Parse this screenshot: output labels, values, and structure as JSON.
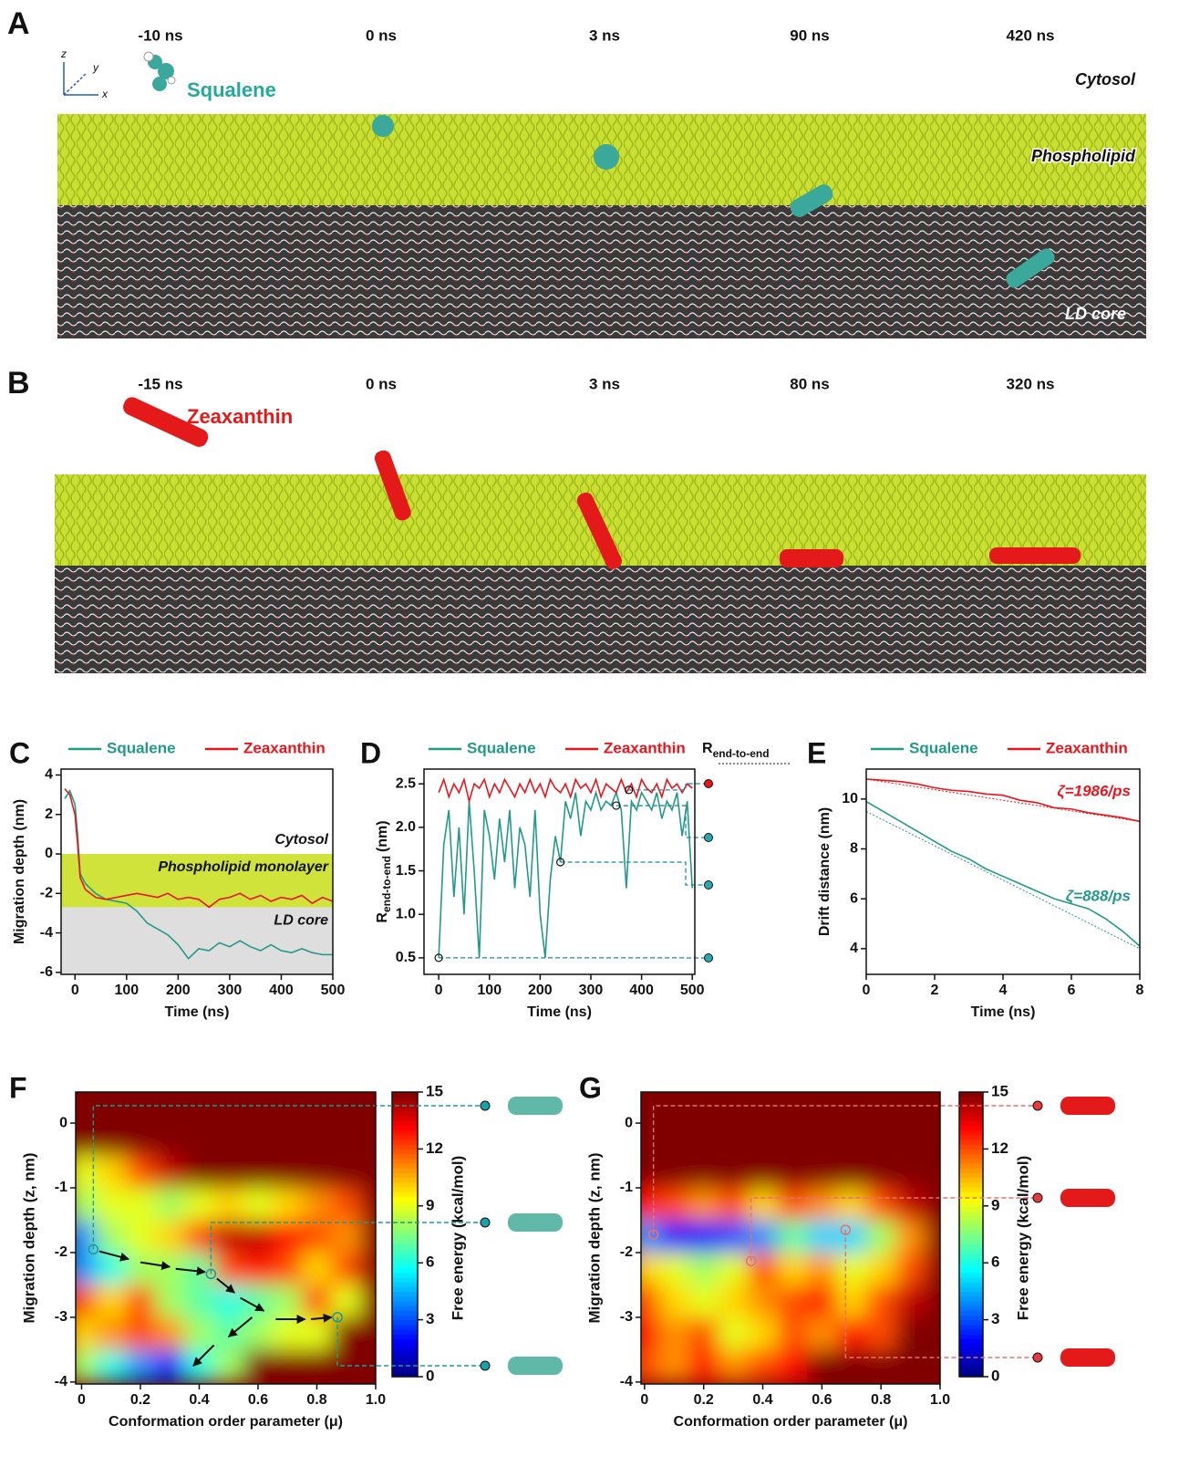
{
  "panel_a": {
    "letter": "A",
    "times": [
      "-10 ns",
      "0 ns",
      "3 ns",
      "90 ns",
      "420 ns"
    ],
    "molecule": "Squalene",
    "cytosol": "Cytosol",
    "phospholipid": "Phospholipid",
    "core": "LD core",
    "axes": [
      "z",
      "y",
      "x"
    ]
  },
  "panel_b": {
    "letter": "B",
    "times": [
      "-15 ns",
      "0 ns",
      "3 ns",
      "80 ns",
      "320 ns"
    ],
    "molecule": "Zeaxanthin"
  },
  "chart_data": [
    {
      "type": "line",
      "panel": "C",
      "x_label": "Time (ns)",
      "y_label": "Migration depth (nm)",
      "xlim": [
        -27,
        500
      ],
      "xticks": [
        0,
        100,
        200,
        300,
        400,
        500
      ],
      "ylim": [
        -6.1,
        4.3
      ],
      "yticks": [
        -6,
        -4,
        -2,
        0,
        2,
        4
      ],
      "cytosol_label": "Cytosol",
      "bands": [
        {
          "label": "Phospholipid monolayer",
          "from": 0,
          "to": -2.7,
          "color": "#cfe33a"
        },
        {
          "label": "LD core",
          "from": -2.7,
          "to": -6.1,
          "color": "#dedede"
        }
      ],
      "x": [
        -20,
        -10,
        0,
        5,
        10,
        20,
        40,
        60,
        80,
        100,
        120,
        140,
        160,
        180,
        200,
        220,
        240,
        260,
        280,
        300,
        320,
        340,
        360,
        380,
        400,
        420,
        440,
        460,
        480,
        500
      ],
      "series": [
        {
          "name": "Squalene",
          "color": "#22998a",
          "values": [
            2.8,
            3.2,
            2.5,
            1,
            -1,
            -1.5,
            -2.0,
            -2.3,
            -2.4,
            -2.5,
            -2.9,
            -3.5,
            -3.8,
            -4.1,
            -4.6,
            -5.3,
            -4.8,
            -4.9,
            -4.5,
            -4.7,
            -4.4,
            -4.7,
            -4.9,
            -4.6,
            -4.9,
            -5.0,
            -4.8,
            -5.0,
            -5.1,
            -5.1
          ]
        },
        {
          "name": "Zeaxanthin",
          "color": "#e8161c",
          "values": [
            3.3,
            3.0,
            2.0,
            0.5,
            -1.2,
            -1.8,
            -2.2,
            -2.3,
            -2.2,
            -2.1,
            -2.0,
            -2.1,
            -2.2,
            -2.0,
            -2.3,
            -2.2,
            -2.3,
            -2.7,
            -2.3,
            -2.2,
            -2.0,
            -2.3,
            -2.1,
            -2.4,
            -2.2,
            -2.3,
            -2.1,
            -2.5,
            -2.2,
            -2.4
          ]
        }
      ]
    },
    {
      "type": "line",
      "panel": "D",
      "x_label": "Time (ns)",
      "y_label": {
        "main": "R",
        "sub": "end-to-end",
        "unit": "(nm)"
      },
      "header": {
        "main": "R",
        "sub": "end-to-end"
      },
      "xlim": [
        -29,
        505
      ],
      "xticks": [
        0,
        100,
        200,
        300,
        400,
        500
      ],
      "ylim": [
        0.31,
        2.67
      ],
      "yticks": [
        0.5,
        {
          "value": 1,
          "label": "1.0"
        },
        1.5,
        {
          "value": 2,
          "label": "2.0"
        },
        2.5
      ],
      "x": [
        0,
        10,
        20,
        30,
        40,
        50,
        60,
        70,
        80,
        90,
        100,
        110,
        120,
        130,
        140,
        150,
        160,
        170,
        180,
        190,
        200,
        210,
        220,
        230,
        240,
        250,
        260,
        270,
        280,
        290,
        300,
        310,
        320,
        330,
        340,
        350,
        360,
        370,
        380,
        390,
        400,
        410,
        420,
        430,
        440,
        450,
        460,
        470,
        480,
        490,
        500
      ],
      "series": [
        {
          "name": "Squalene",
          "color": "#22998a",
          "values": [
            0.5,
            1.8,
            2.2,
            1.2,
            2.0,
            1.0,
            2.3,
            1.5,
            0.5,
            2.2,
            1.9,
            1.4,
            2.1,
            1.6,
            2.2,
            1.3,
            2.0,
            1.8,
            1.2,
            2.2,
            1.0,
            0.5,
            1.4,
            1.9,
            1.6,
            2.3,
            2.1,
            2.4,
            1.9,
            2.3,
            2.2,
            2.4,
            2.2,
            2.3,
            2.25,
            2.4,
            2.2,
            1.3,
            2.3,
            2.2,
            2.4,
            2.3,
            2.2,
            2.4,
            2.1,
            2.3,
            2.2,
            2.4,
            1.9,
            2.3,
            1.3
          ]
        },
        {
          "name": "Zeaxanthin",
          "color": "#e8161c",
          "values": [
            2.4,
            2.55,
            2.35,
            2.5,
            2.4,
            2.55,
            2.3,
            2.5,
            2.45,
            2.55,
            2.35,
            2.5,
            2.4,
            2.55,
            2.45,
            2.35,
            2.5,
            2.4,
            2.55,
            2.4,
            2.5,
            2.35,
            2.55,
            2.45,
            2.4,
            2.5,
            2.35,
            2.55,
            2.45,
            2.5,
            2.4,
            2.55,
            2.35,
            2.5,
            2.45,
            2.4,
            2.55,
            2.4,
            2.5,
            2.35,
            2.55,
            2.45,
            2.4,
            2.5,
            2.35,
            2.55,
            2.45,
            2.5,
            2.4,
            2.5,
            2.45
          ]
        }
      ],
      "markers": {
        "x": [
          375,
          350,
          240,
          0
        ],
        "y": [
          2.43,
          2.25,
          1.6,
          0.5
        ]
      }
    },
    {
      "type": "line",
      "panel": "E",
      "x_label": "Time (ns)",
      "y_label": "Drift distance (nm)",
      "xlim": [
        0,
        8
      ],
      "xticks": [
        0,
        2,
        4,
        6,
        8
      ],
      "ylim": [
        2.97,
        11.2
      ],
      "yticks": [
        4,
        6,
        8,
        10
      ],
      "x": [
        0,
        0.5,
        1,
        1.5,
        2,
        2.5,
        3,
        3.5,
        4,
        4.5,
        5,
        5.5,
        6,
        6.5,
        7,
        7.5,
        8
      ],
      "series": [
        {
          "name": "Squalene",
          "color": "#22998a",
          "values": [
            9.9,
            9.5,
            9.1,
            8.7,
            8.3,
            7.9,
            7.6,
            7.2,
            6.9,
            6.6,
            6.3,
            6.0,
            5.8,
            5.6,
            5.2,
            4.7,
            4.1
          ],
          "fit": [
            9.5,
            4.0
          ],
          "annotation": "ζ=888/ps"
        },
        {
          "name": "Zeaxanthin",
          "color": "#e8161c",
          "values": [
            10.8,
            10.75,
            10.7,
            10.6,
            10.45,
            10.35,
            10.3,
            10.2,
            10.15,
            9.95,
            9.85,
            9.65,
            9.6,
            9.45,
            9.35,
            9.25,
            9.1
          ],
          "fit": [
            10.8,
            9.1
          ],
          "annotation": "ζ=1986/ps"
        }
      ]
    },
    {
      "type": "heatmap",
      "panel": "F",
      "x_label": "Conformation order parameter (μ)",
      "y_label": "Migration depth (z, nm)",
      "colorbar_label": "Free energy (kcal/mol)",
      "xlim": [
        -0.02,
        1.0
      ],
      "xticks": [
        0,
        {
          "value": 0.2,
          "label": "0.2"
        },
        {
          "value": 0.4,
          "label": "0.4"
        },
        {
          "value": 0.6,
          "label": "0.6"
        },
        {
          "value": 0.8,
          "label": "0.8"
        },
        {
          "value": 1,
          "label": "1.0"
        }
      ],
      "ylim": [
        -4.03,
        0.48
      ],
      "yticks": [
        -4,
        -3,
        -2,
        -1,
        0
      ],
      "zlim": [
        0,
        15
      ],
      "colorbar_ticks": [
        0,
        3,
        6,
        9,
        12,
        15
      ],
      "x": [
        0,
        0.1,
        0.2,
        0.3,
        0.4,
        0.5,
        0.6,
        0.7,
        0.8,
        0.9,
        1.0
      ],
      "y": [
        0.25,
        -0.25,
        -0.75,
        -1.25,
        -1.75,
        -2.25,
        -2.75,
        -3.25,
        -3.75
      ],
      "z": [
        [
          15,
          15,
          15,
          15,
          15,
          15,
          15,
          15,
          15,
          15,
          15
        ],
        [
          15,
          15,
          15,
          15,
          15,
          15,
          15,
          15,
          15,
          15,
          15
        ],
        [
          9,
          10,
          12,
          14,
          15,
          15,
          15,
          15,
          15,
          15,
          15
        ],
        [
          8,
          9,
          9,
          8,
          9,
          10,
          9,
          10,
          11,
          12,
          15
        ],
        [
          4,
          8,
          9,
          10,
          12,
          14,
          14,
          13,
          12,
          11,
          15
        ],
        [
          4,
          6,
          8,
          8,
          7,
          12,
          13,
          12,
          10,
          12,
          15
        ],
        [
          12,
          10,
          12,
          8,
          7,
          6,
          7,
          8,
          12,
          9,
          15
        ],
        [
          10,
          11,
          12,
          11,
          8,
          7,
          8,
          9,
          9,
          15,
          15
        ],
        [
          8,
          6,
          4,
          2,
          6,
          8,
          15,
          15,
          15,
          15,
          15
        ]
      ],
      "markers": {
        "x": [
          0.04,
          0.44,
          0.87
        ],
        "y": [
          -1.95,
          -2.33,
          -3.0
        ]
      },
      "marker_color": "#1b9a9a"
    },
    {
      "type": "heatmap",
      "panel": "G",
      "x_label": "Conformation order parameter (μ)",
      "y_label": "Migration depth (z, nm)",
      "colorbar_label": "Free energy (kcal/mol)",
      "xlim": [
        -0.012,
        1.0
      ],
      "xticks": [
        0,
        {
          "value": 0.2,
          "label": "0.2"
        },
        {
          "value": 0.4,
          "label": "0.4"
        },
        {
          "value": 0.6,
          "label": "0.6"
        },
        {
          "value": 0.8,
          "label": "0.8"
        },
        {
          "value": 1,
          "label": "1.0"
        }
      ],
      "ylim": [
        -4.03,
        0.48
      ],
      "yticks": [
        -4,
        -3,
        -2,
        -1,
        0
      ],
      "zlim": [
        0,
        15
      ],
      "colorbar_ticks": [
        0,
        3,
        6,
        9,
        12,
        15
      ],
      "x": [
        0,
        0.1,
        0.2,
        0.3,
        0.4,
        0.5,
        0.6,
        0.7,
        0.8,
        0.9,
        1.0
      ],
      "y": [
        0.25,
        -0.25,
        -0.75,
        -1.25,
        -1.75,
        -2.25,
        -2.75,
        -3.25,
        -3.75
      ],
      "z": [
        [
          15,
          15,
          15,
          15,
          15,
          15,
          15,
          15,
          15,
          15,
          15
        ],
        [
          15,
          15,
          15,
          15,
          15,
          15,
          15,
          15,
          15,
          15,
          15
        ],
        [
          15,
          15,
          15,
          15,
          15,
          15,
          15,
          15,
          15,
          15,
          15
        ],
        [
          13,
          12,
          11,
          12,
          10,
          12,
          11,
          10,
          12,
          14,
          15
        ],
        [
          4,
          2,
          2,
          3,
          4,
          7,
          5,
          5,
          8,
          11,
          15
        ],
        [
          10,
          9,
          8,
          9,
          12,
          10,
          11,
          9,
          10,
          12,
          15
        ],
        [
          12,
          10,
          9,
          10,
          11,
          12,
          13,
          10,
          12,
          14,
          15
        ],
        [
          13,
          11,
          12,
          9,
          10,
          12,
          11,
          13,
          12,
          15,
          15
        ],
        [
          12,
          11,
          13,
          11,
          12,
          13,
          15,
          15,
          15,
          15,
          15
        ]
      ],
      "markers": {
        "x": [
          0.03,
          0.36,
          0.68
        ],
        "y": [
          -1.72,
          -2.13,
          -1.65
        ]
      },
      "marker_color": "#e87070"
    }
  ]
}
